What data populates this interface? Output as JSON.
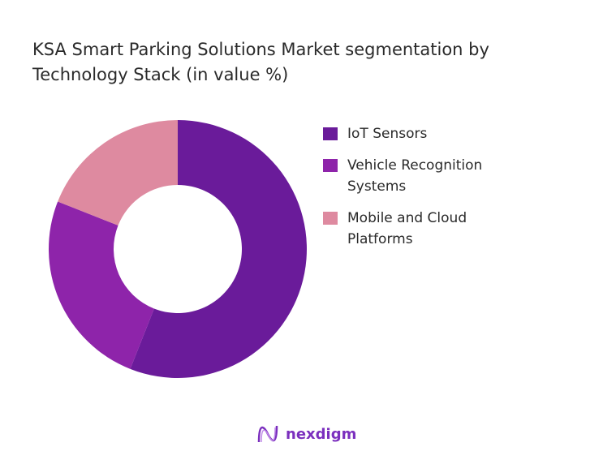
{
  "chart_data": {
    "type": "pie",
    "donut": true,
    "title": "KSA Smart Parking Solutions Market segmentation by Technology Stack (in value %)",
    "categories": [
      "IoT Sensors",
      "Vehicle Recognition Systems",
      "Mobile and Cloud Platforms"
    ],
    "values": [
      56,
      25,
      19
    ],
    "colors": [
      "#6a1b9a",
      "#8e24aa",
      "#de8aa0"
    ],
    "legend_position": "right"
  },
  "brand": {
    "name": "nexdigm"
  }
}
